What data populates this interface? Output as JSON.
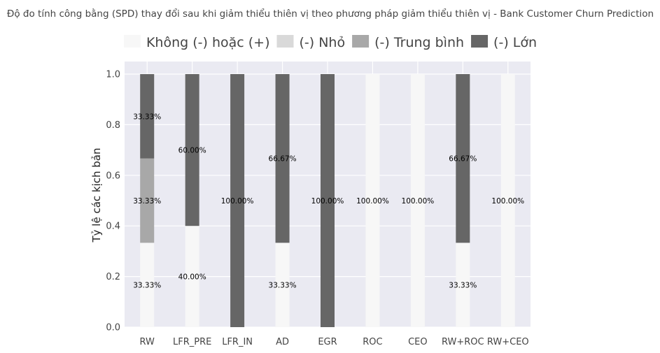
{
  "chart_data": {
    "type": "bar",
    "stacked": true,
    "title": "Độ đo tính công bằng (SPD) thay đổi sau khi giảm thiểu thiên vị theo phương pháp giảm thiểu thiên vị - Bank Customer Churn Prediction",
    "xlabel": "",
    "ylabel": "Tỷ lệ các kịch bản",
    "ylim": [
      0,
      1.0
    ],
    "yticks": [
      "0.0",
      "0.2",
      "0.4",
      "0.6",
      "0.8",
      "1.0"
    ],
    "grid": true,
    "legend_position": "top",
    "categories": [
      "RW",
      "LFR_PRE",
      "LFR_IN",
      "AD",
      "EGR",
      "ROC",
      "CEO",
      "RW+ROC",
      "RW+CEO"
    ],
    "series": [
      {
        "name": "Không (-) hoặc (+)",
        "color": "#f7f7f7",
        "values": [
          0.3333,
          0.4,
          0,
          0.3333,
          0,
          1.0,
          1.0,
          0.3333,
          1.0
        ],
        "labels": [
          "33.33%",
          "40.00%",
          "",
          "33.33%",
          "",
          "100.00%",
          "100.00%",
          "33.33%",
          "100.00%"
        ]
      },
      {
        "name": "(-) Nhỏ",
        "color": "#d9d9d9",
        "values": [
          0,
          0,
          0,
          0,
          0,
          0,
          0,
          0,
          0
        ],
        "labels": [
          "",
          "",
          "",
          "",
          "",
          "",
          "",
          "",
          ""
        ]
      },
      {
        "name": "(-) Trung bình",
        "color": "#a8a8a8",
        "values": [
          0.3333,
          0,
          0,
          0,
          0,
          0,
          0,
          0,
          0
        ],
        "labels": [
          "33.33%",
          "",
          "",
          "",
          "",
          "",
          "",
          "",
          ""
        ]
      },
      {
        "name": "(-) Lớn",
        "color": "#666666",
        "values": [
          0.3333,
          0.6,
          1.0,
          0.6667,
          1.0,
          0,
          0,
          0.6667,
          0
        ],
        "labels": [
          "33.33%",
          "60.00%",
          "100.00%",
          "66.67%",
          "100.00%",
          "",
          "",
          "66.67%",
          ""
        ]
      }
    ],
    "plot_background": "#eaeaf2",
    "grid_color": "#ffffff"
  }
}
